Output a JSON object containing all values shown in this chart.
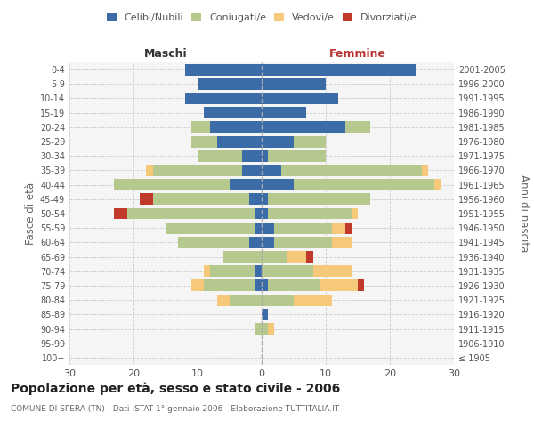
{
  "age_groups": [
    "100+",
    "95-99",
    "90-94",
    "85-89",
    "80-84",
    "75-79",
    "70-74",
    "65-69",
    "60-64",
    "55-59",
    "50-54",
    "45-49",
    "40-44",
    "35-39",
    "30-34",
    "25-29",
    "20-24",
    "15-19",
    "10-14",
    "5-9",
    "0-4"
  ],
  "birth_years": [
    "≤ 1905",
    "1906-1910",
    "1911-1915",
    "1916-1920",
    "1921-1925",
    "1926-1930",
    "1931-1935",
    "1936-1940",
    "1941-1945",
    "1946-1950",
    "1951-1955",
    "1956-1960",
    "1961-1965",
    "1966-1970",
    "1971-1975",
    "1976-1980",
    "1981-1985",
    "1986-1990",
    "1991-1995",
    "1996-2000",
    "2001-2005"
  ],
  "males_celibi": [
    0,
    0,
    0,
    0,
    0,
    1,
    1,
    0,
    2,
    1,
    1,
    2,
    5,
    3,
    3,
    7,
    8,
    9,
    12,
    10,
    12
  ],
  "males_coniugati": [
    0,
    0,
    1,
    0,
    5,
    8,
    7,
    6,
    11,
    14,
    20,
    15,
    18,
    14,
    7,
    4,
    3,
    0,
    0,
    0,
    0
  ],
  "males_vedovi": [
    0,
    0,
    0,
    0,
    2,
    2,
    1,
    0,
    0,
    0,
    0,
    0,
    0,
    1,
    0,
    0,
    0,
    0,
    0,
    0,
    0
  ],
  "males_divorziati": [
    0,
    0,
    0,
    0,
    0,
    0,
    0,
    0,
    0,
    0,
    2,
    2,
    0,
    0,
    0,
    0,
    0,
    0,
    0,
    0,
    0
  ],
  "females_nubili": [
    0,
    0,
    0,
    1,
    0,
    1,
    0,
    0,
    2,
    2,
    1,
    1,
    5,
    3,
    1,
    5,
    13,
    7,
    12,
    10,
    24
  ],
  "females_coniugate": [
    0,
    0,
    1,
    0,
    5,
    8,
    8,
    4,
    9,
    9,
    13,
    16,
    22,
    22,
    9,
    5,
    4,
    0,
    0,
    0,
    0
  ],
  "females_vedove": [
    0,
    0,
    1,
    0,
    6,
    6,
    6,
    3,
    3,
    2,
    1,
    0,
    1,
    1,
    0,
    0,
    0,
    0,
    0,
    0,
    0
  ],
  "females_divorziate": [
    0,
    0,
    0,
    0,
    0,
    1,
    0,
    1,
    0,
    1,
    0,
    0,
    0,
    0,
    0,
    0,
    0,
    0,
    0,
    0,
    0
  ],
  "color_celibi": "#3b6ca8",
  "color_coniugati": "#b5c98e",
  "color_vedovi": "#f5c87a",
  "color_divorziati": "#c0392b",
  "xlim": 30,
  "title": "Popolazione per età, sesso e stato civile - 2006",
  "subtitle": "COMUNE DI SPERA (TN) - Dati ISTAT 1° gennaio 2006 - Elaborazione TUTTITALIA.IT",
  "ylabel_left": "Fasce di età",
  "ylabel_right": "Anni di nascita",
  "label_maschi": "Maschi",
  "label_femmine": "Femmine",
  "legend_labels": [
    "Celibi/Nubili",
    "Coniugati/e",
    "Vedovi/e",
    "Divorziati/e"
  ],
  "bg_color": "#f5f5f5"
}
